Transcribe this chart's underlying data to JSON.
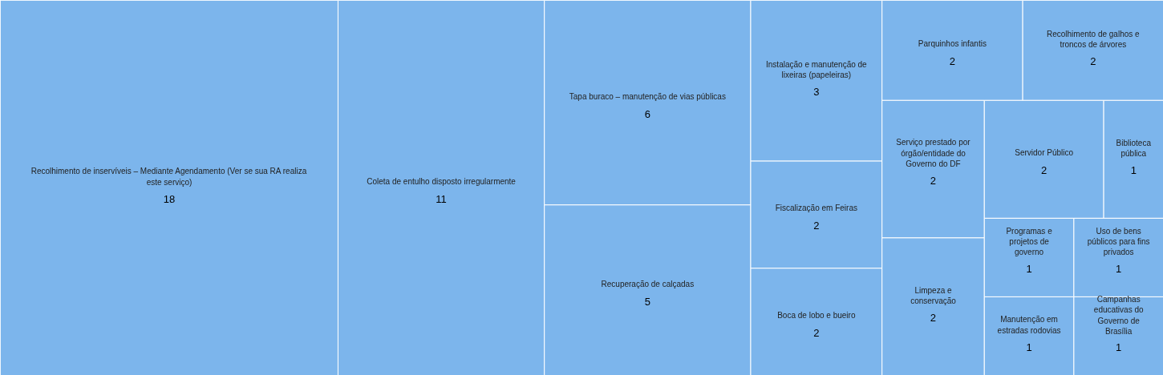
{
  "chart_data": {
    "type": "other",
    "categories": [
      "Recolhimento de inservíveis – Mediante Agendamento (Ver se sua RA realiza este serviço)",
      "Coleta de entulho disposto irregularmente",
      "Tapa buraco – manutenção de vias públicas",
      "Recuperação de calçadas",
      "Instalação e manutenção de lixeiras (papeleiras)",
      "Fiscalização em Feiras",
      "Boca de lobo e bueiro",
      "Parquinhos infantis",
      "Recolhimento de galhos e troncos de árvores",
      "Serviço prestado por órgão/entidade do Governo do DF",
      "Limpeza e conservação",
      "Servidor Público",
      "Biblioteca pública",
      "Programas e projetos de governo",
      "Manutenção em estradas rodovias",
      "Uso de bens públicos para fins privados",
      "Campanhas educativas do Governo de Brasília"
    ],
    "values": [
      18,
      11,
      6,
      5,
      3,
      2,
      2,
      2,
      2,
      2,
      2,
      2,
      1,
      1,
      1,
      1,
      1
    ],
    "color": "#7cb5ec",
    "data_labels": true
  }
}
